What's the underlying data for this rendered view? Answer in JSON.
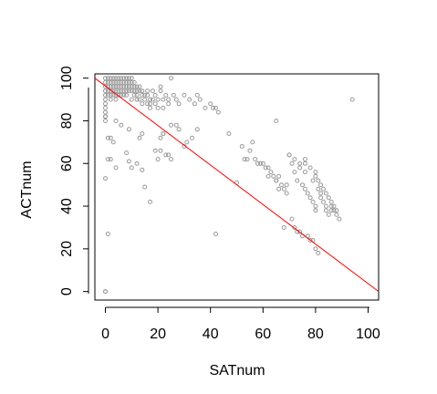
{
  "chart_data": {
    "type": "scatter",
    "title": "",
    "xlabel": "SATnum",
    "ylabel": "ACTnum",
    "xlim": [
      -4,
      104
    ],
    "ylim": [
      -4,
      102
    ],
    "x_ticks": [
      0,
      20,
      40,
      60,
      80,
      100
    ],
    "y_ticks": [
      0,
      20,
      40,
      60,
      80,
      100
    ],
    "x_tick_labels": [
      "0",
      "20",
      "40",
      "60",
      "80",
      "100"
    ],
    "y_tick_labels": [
      "0",
      "20",
      "40",
      "60",
      "80",
      "100"
    ],
    "grid": false,
    "legend": "none",
    "colors": {
      "points": "#9a9a9a",
      "fit_line": "#ff0000"
    },
    "fit_line": {
      "x": [
        -4,
        104
      ],
      "y": [
        100,
        0
      ]
    },
    "points": {
      "x": [
        0,
        0,
        0,
        0,
        0,
        0,
        0,
        0,
        0,
        0,
        1,
        1,
        1,
        1,
        1,
        2,
        2,
        2,
        2,
        2,
        2,
        3,
        3,
        3,
        3,
        3,
        4,
        4,
        4,
        4,
        4,
        4,
        5,
        5,
        5,
        5,
        5,
        6,
        6,
        6,
        6,
        6,
        7,
        7,
        7,
        7,
        7,
        8,
        8,
        8,
        8,
        8,
        9,
        9,
        9,
        9,
        10,
        10,
        10,
        10,
        10,
        11,
        11,
        11,
        11,
        12,
        12,
        12,
        12,
        13,
        13,
        13,
        14,
        14,
        14,
        15,
        15,
        16,
        16,
        16,
        17,
        17,
        17,
        18,
        18,
        19,
        19,
        20,
        20,
        21,
        21,
        22,
        22,
        23,
        24,
        24,
        25,
        26,
        27,
        28,
        30,
        32,
        34,
        35,
        36,
        38,
        40,
        41,
        42,
        43,
        0,
        1,
        2,
        3,
        1,
        2,
        4,
        0,
        1,
        8,
        9,
        10,
        12,
        14,
        15,
        17,
        19,
        20,
        21,
        22,
        24,
        25,
        27,
        28,
        30,
        31,
        33,
        35,
        0,
        4,
        6,
        9,
        14,
        13,
        21,
        22,
        23,
        25,
        42,
        0,
        47,
        50,
        52,
        53,
        54,
        55,
        56,
        57,
        58,
        59,
        60,
        61,
        62,
        63,
        64,
        65,
        66,
        67,
        68,
        69,
        70,
        71,
        72,
        73,
        74,
        75,
        76,
        77,
        78,
        79,
        80,
        80,
        81,
        82,
        82,
        83,
        84,
        84,
        85,
        86,
        86,
        87,
        88,
        89,
        76,
        78,
        80,
        81,
        82,
        83,
        84,
        85,
        86,
        87,
        88,
        72,
        74,
        77,
        79,
        68,
        71,
        73,
        75,
        78,
        80,
        81,
        62,
        65,
        69,
        66,
        74,
        76,
        79,
        80,
        70,
        72,
        76,
        94,
        65,
        0
      ],
      "y": [
        100,
        98,
        96,
        94,
        92,
        90,
        88,
        86,
        84,
        82,
        100,
        98,
        96,
        94,
        92,
        100,
        98,
        96,
        94,
        92,
        90,
        100,
        98,
        96,
        94,
        92,
        100,
        98,
        96,
        94,
        92,
        90,
        100,
        98,
        96,
        94,
        92,
        100,
        98,
        96,
        94,
        92,
        100,
        98,
        96,
        94,
        92,
        100,
        98,
        96,
        94,
        92,
        100,
        98,
        96,
        94,
        100,
        98,
        96,
        94,
        90,
        98,
        96,
        94,
        92,
        96,
        94,
        92,
        90,
        96,
        94,
        90,
        94,
        92,
        88,
        92,
        90,
        94,
        92,
        88,
        90,
        88,
        86,
        94,
        90,
        92,
        88,
        90,
        86,
        96,
        94,
        90,
        86,
        92,
        90,
        88,
        100,
        92,
        90,
        88,
        92,
        90,
        88,
        92,
        90,
        86,
        88,
        86,
        86,
        84,
        80,
        72,
        72,
        70,
        62,
        62,
        58,
        53,
        27,
        65,
        61,
        58,
        60,
        57,
        49,
        42,
        66,
        62,
        72,
        74,
        64,
        78,
        78,
        76,
        68,
        70,
        72,
        76,
        82,
        80,
        78,
        76,
        74,
        72,
        66,
        74,
        64,
        62,
        27,
        0,
        74,
        51,
        68,
        62,
        62,
        66,
        70,
        62,
        60,
        60,
        60,
        58,
        58,
        56,
        54,
        52,
        54,
        50,
        48,
        46,
        64,
        60,
        56,
        52,
        60,
        50,
        48,
        46,
        44,
        42,
        40,
        38,
        48,
        46,
        44,
        42,
        40,
        38,
        36,
        38,
        40,
        38,
        36,
        34,
        62,
        58,
        54,
        52,
        50,
        48,
        46,
        44,
        42,
        40,
        38,
        30,
        28,
        26,
        24,
        30,
        34,
        28,
        26,
        24,
        20,
        18,
        54,
        52,
        50,
        48,
        58,
        56,
        52,
        56,
        64,
        62,
        60,
        90,
        80,
        0
      ]
    }
  }
}
